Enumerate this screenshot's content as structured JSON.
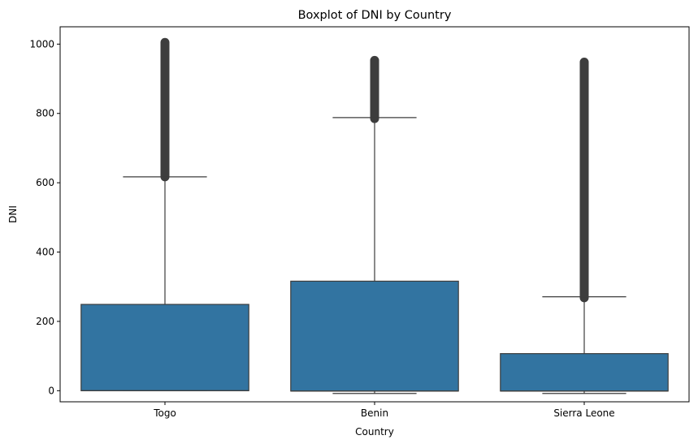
{
  "chart_data": {
    "type": "boxplot",
    "title": "Boxplot of DNI by Country",
    "xlabel": "Country",
    "ylabel": "DNI",
    "categories": [
      "Togo",
      "Benin",
      "Sierra Leone"
    ],
    "ylim": [
      -32,
      1050
    ],
    "yticks": [
      0,
      200,
      400,
      600,
      800,
      1000
    ],
    "ytick_labels": [
      "0",
      "200",
      "400",
      "600",
      "800",
      "1000"
    ],
    "grid": false,
    "box_color": "#3274a1",
    "line_color": "#3d3d3d",
    "boxes": [
      {
        "category": "Togo",
        "whisker_low": 0,
        "q1": 0,
        "median": 0,
        "q3": 249,
        "whisker_high": 617,
        "outliers_from": 617,
        "outliers_to": 1005
      },
      {
        "category": "Benin",
        "whisker_low": -8,
        "q1": -1,
        "median": -1,
        "q3": 316,
        "whisker_high": 788,
        "outliers_from": 785,
        "outliers_to": 953
      },
      {
        "category": "Sierra Leone",
        "whisker_low": -8,
        "q1": -1,
        "median": -1,
        "q3": 107,
        "whisker_high": 271,
        "outliers_from": 268,
        "outliers_to": 948
      }
    ]
  }
}
